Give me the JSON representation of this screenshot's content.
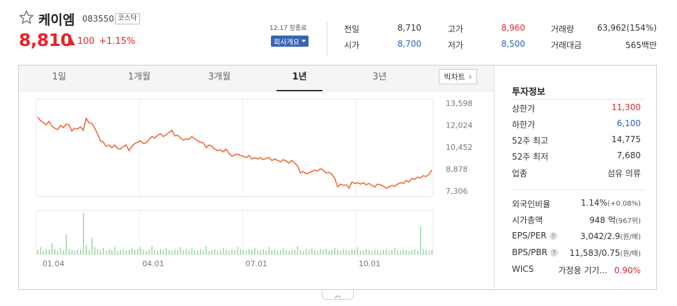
{
  "stock": {
    "name": "케이엠",
    "code": "083550",
    "market": "코스닥",
    "price": "8,810",
    "change": "100",
    "change_pct": "+1.15%",
    "date_label": "12.17 장종료",
    "company_button": "회사개요"
  },
  "quote": {
    "prev_close_label": "전일",
    "prev_close": "8,710",
    "open_label": "시가",
    "open": "8,700",
    "high_label": "고가",
    "high": "8,960",
    "low_label": "저가",
    "low": "8,500",
    "volume_label": "거래량",
    "volume": "63,962(154%)",
    "amount_label": "거래대금",
    "amount": "565백만"
  },
  "tabs": [
    "1일",
    "1개월",
    "3개월",
    "1년",
    "3년"
  ],
  "active_tab": "1년",
  "big_chart_label": "빅차트",
  "chart_data": {
    "type": "line",
    "y_ticks": [
      "13,598",
      "12,024",
      "10,452",
      "8,878",
      "7,306"
    ],
    "y_tick_values": [
      13598,
      12024,
      10452,
      8878,
      7306
    ],
    "x_ticks": [
      "01.04",
      "04.01",
      "07.01",
      "10.01"
    ],
    "ylim": [
      7306,
      13598
    ],
    "grid": true,
    "series": [
      {
        "values": [
          12600,
          12350,
          12200,
          12050,
          12300,
          11950,
          11800,
          11700,
          12000,
          11850,
          12100,
          12050,
          11600,
          11800,
          11750,
          11900,
          11650,
          12500,
          12200,
          12150,
          11800,
          11400,
          10900,
          10800,
          10500,
          10600,
          10400,
          10600,
          10350,
          10300,
          10500,
          10600,
          10200,
          10500,
          10700,
          10800,
          10900,
          10700,
          10750,
          11000,
          11200,
          11100,
          11300,
          11400,
          11200,
          11350,
          11500,
          11650,
          11250,
          11300,
          11100,
          10950,
          11050,
          11000,
          11200,
          11050,
          10900,
          10800,
          10750,
          10400,
          10600,
          10500,
          10300,
          10200,
          10250,
          10100,
          10300,
          10000,
          9800,
          9900,
          9950,
          9850,
          9800,
          9700,
          9850,
          9600,
          9700,
          9600,
          9700,
          9550,
          9650,
          9700,
          9500,
          9600,
          9500,
          9400,
          9550,
          9450,
          9300,
          9500,
          9300,
          9100,
          8600,
          8700,
          8550,
          8600,
          8700,
          8800,
          8750,
          8900,
          8800,
          8600,
          8650,
          8500,
          8200,
          7600,
          7800,
          7700,
          7750,
          7500,
          7950,
          7850,
          7900,
          7800,
          7900,
          7750,
          7850,
          7700,
          7600,
          7800,
          7750,
          7650,
          7500,
          7600,
          7700,
          7650,
          7800,
          7900,
          7850,
          8050,
          7950,
          8200,
          8150,
          8300,
          8250,
          8400,
          8350,
          8500,
          8810
        ]
      },
      {
        "values": [
          5,
          8,
          4,
          6,
          5,
          12,
          6,
          4,
          7,
          5,
          22,
          6,
          5,
          4,
          6,
          5,
          45,
          10,
          5,
          18,
          8,
          6,
          5,
          7,
          4,
          6,
          5,
          8,
          4,
          5,
          6,
          4,
          5,
          7,
          5,
          6,
          8,
          5,
          4,
          6,
          9,
          5,
          4,
          6,
          5,
          7,
          5,
          4,
          6,
          5,
          8,
          5,
          6,
          4,
          7,
          5,
          4,
          6,
          5,
          9,
          4,
          5,
          6,
          4,
          5,
          7,
          5,
          4,
          6,
          5,
          8,
          6,
          5,
          4,
          6,
          5,
          7,
          4,
          5,
          6,
          4,
          8,
          5,
          6,
          4,
          5,
          7,
          5,
          4,
          6,
          5,
          9,
          5,
          4,
          6,
          5,
          7,
          5,
          4,
          6,
          5,
          6,
          4,
          5,
          7,
          5,
          4,
          6,
          5,
          4,
          6,
          5,
          8,
          4,
          5,
          6,
          5,
          4,
          6,
          5,
          4,
          5,
          6,
          4,
          5,
          7,
          5,
          4,
          6,
          5,
          4,
          5,
          6,
          4,
          30,
          6,
          5,
          4,
          5
        ]
      }
    ]
  },
  "info": {
    "title": "투자정보",
    "upper_limit_label": "상한가",
    "upper_limit": "11,300",
    "lower_limit_label": "하한가",
    "lower_limit": "6,100",
    "high52_label": "52주 최고",
    "high52": "14,775",
    "low52_label": "52주 최저",
    "low52": "7,680",
    "industry_label": "업종",
    "industry": "섬유 의류",
    "foreign_label": "외국인비율",
    "foreign": "1.14%",
    "foreign_sub": "(+0.08%)",
    "mktcap_label": "시가총액",
    "mktcap": "948 억",
    "mktcap_sub": "(967위)",
    "eps_label": "EPS/PER",
    "eps": "3,042/2.9",
    "eps_sub": "(원/배)",
    "bps_label": "BPS/PBR",
    "bps": "11,583/0.75",
    "bps_sub": "(원/배)",
    "wics_label": "WICS",
    "wics": "가정용 기기...",
    "wics_pct": "0.90%",
    "help_glyph": "?"
  },
  "colors": {
    "up": "#e8232b",
    "down": "#1e63c7",
    "line": "#f0683a",
    "volume": "#7ccf8a"
  },
  "icons": {
    "favorite": "star-icon",
    "toggle": "chevron-up-icon"
  }
}
